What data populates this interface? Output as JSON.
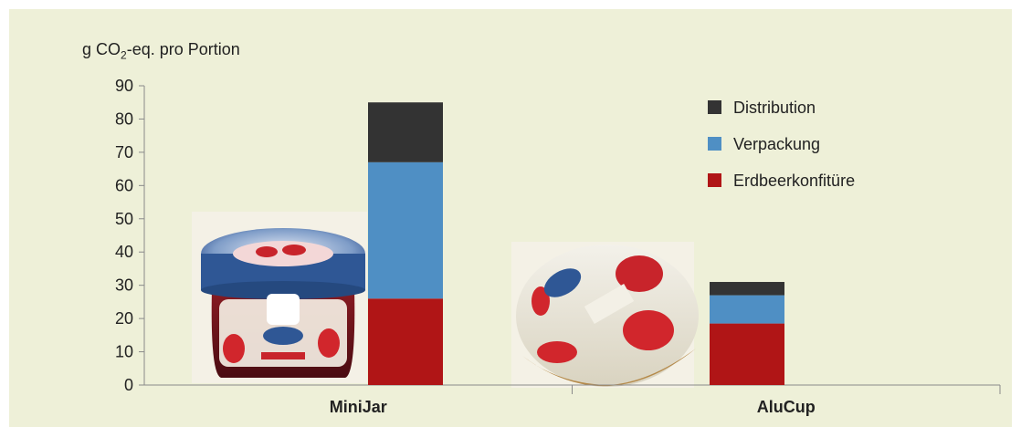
{
  "chart_data": {
    "type": "bar",
    "stacked": true,
    "ylabel": "g CO2-eq. pro Portion",
    "ylim": [
      0,
      90
    ],
    "yticks": [
      0,
      10,
      20,
      30,
      40,
      50,
      60,
      70,
      80,
      90
    ],
    "categories": [
      "MiniJar",
      "AluCup"
    ],
    "series": [
      {
        "name": "Erdbeerkonfitüre",
        "values": [
          26,
          18.5
        ],
        "color": "#b01516"
      },
      {
        "name": "Verpackung",
        "values": [
          41,
          8.5
        ],
        "color": "#4f8fc4"
      },
      {
        "name": "Distribution",
        "values": [
          18,
          4
        ],
        "color": "#333333"
      }
    ],
    "legend": [
      "Distribution",
      "Verpackung",
      "Erdbeerkonfitüre"
    ],
    "legend_position": "top-right",
    "grid": false
  },
  "images": [
    {
      "name": "minijar-photo",
      "label": "Hero Strawberry mini jar"
    },
    {
      "name": "alucup-photo",
      "label": "Hero Extra strawberry alu cup"
    }
  ],
  "ylabel_parts": {
    "pre": "g CO",
    "sub": "2",
    "post": "-eq. pro Portion"
  }
}
